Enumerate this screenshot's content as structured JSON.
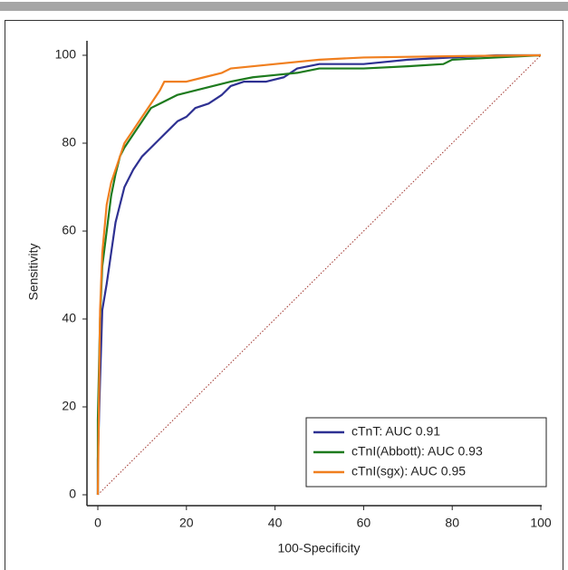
{
  "chart_data": {
    "type": "line",
    "y_label": "Sensitivity",
    "x_label": "100-Specificity",
    "xlim": [
      0,
      100
    ],
    "ylim": [
      0,
      100
    ],
    "xticks": [
      0,
      20,
      40,
      60,
      80,
      100
    ],
    "yticks": [
      0,
      20,
      40,
      60,
      80,
      100
    ],
    "legend": "lower right",
    "series": [
      {
        "name": "cTnT: AUC 0.91",
        "color": "#2e3192",
        "x": [
          0,
          0,
          0.5,
          1,
          2,
          3,
          4,
          5,
          6,
          8,
          10,
          12,
          14,
          16,
          18,
          20,
          22,
          25,
          28,
          30,
          33,
          38,
          42,
          45,
          50,
          60,
          70,
          80,
          90,
          100
        ],
        "values": [
          0,
          8,
          26,
          42,
          48,
          55,
          62,
          66,
          70,
          74,
          77,
          79,
          81,
          83,
          85,
          86,
          88,
          89,
          91,
          93,
          94,
          94,
          95,
          97,
          98,
          98,
          99,
          99.5,
          100,
          100
        ]
      },
      {
        "name": "cTnI(Abbott): AUC 0.93",
        "color": "#1e7b1e",
        "x": [
          0,
          0,
          0.5,
          1,
          2,
          3,
          4,
          5,
          6,
          8,
          10,
          12,
          14,
          16,
          18,
          22,
          26,
          30,
          35,
          40,
          45,
          50,
          60,
          70,
          78,
          80,
          90,
          100
        ],
        "values": [
          0,
          17,
          40,
          52,
          60,
          68,
          73,
          77,
          79,
          82,
          85,
          88,
          89,
          90,
          91,
          92,
          93,
          94,
          95,
          95.5,
          96,
          97,
          97,
          97.5,
          98,
          99,
          99.5,
          100
        ]
      },
      {
        "name": "cTnI(sgx): AUC 0.95",
        "color": "#f07f1f",
        "x": [
          0,
          0.5,
          1,
          2,
          3,
          4,
          5,
          6,
          8,
          10,
          12,
          14,
          15,
          20,
          24,
          28,
          30,
          40,
          50,
          60,
          80,
          100
        ],
        "values": [
          0,
          42,
          55,
          66,
          71,
          74,
          77,
          80,
          83,
          86,
          89,
          92,
          94,
          94,
          95,
          96,
          97,
          98,
          99,
          99.5,
          99.8,
          100
        ]
      }
    ]
  }
}
